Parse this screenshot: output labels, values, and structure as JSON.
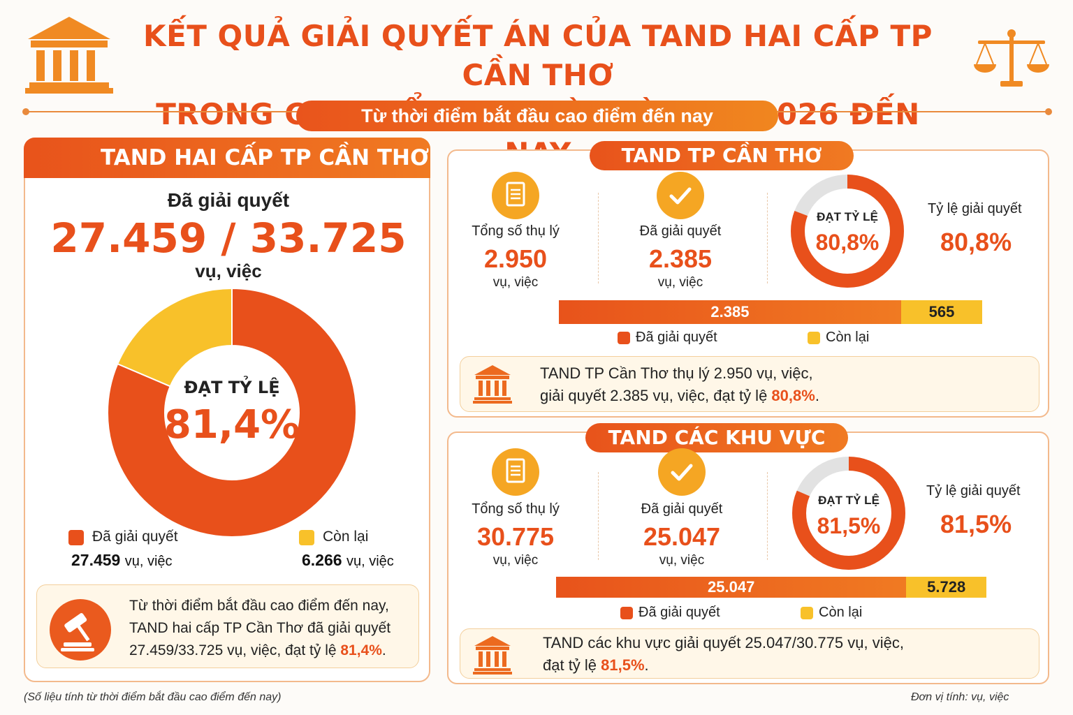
{
  "header": {
    "title_line1": "KẾT QUẢ GIẢI QUYẾT ÁN CỦA TAND HAI CẤP TP CẦN THƠ",
    "title_line2": "TRONG CAO ĐIỂM 90 NGÀY TỪ 15/6/2026 ĐẾN NAY",
    "subtitle": "Từ thời điểm bắt đầu cao điểm đến nay"
  },
  "left": {
    "header": "TAND HAI CẤP TP CẦN THƠ",
    "resolved_label": "Đã giải quyết",
    "resolved_total": "27.459 / 33.725",
    "unit": "vụ, việc",
    "center_label": "ĐẠT TỶ LỆ",
    "center_value": "81,4%",
    "legend_resolved": "Đã giải quyết",
    "legend_remaining": "Còn lại",
    "resolved_value": "27.459",
    "remaining_value": "6.266",
    "unit_small": "vụ, việc",
    "note_line1": "Từ thời điểm bắt đầu cao điểm đến nay,",
    "note_line2": "TAND hai cấp TP Cần Thơ đã giải quyết",
    "note_line3_pre": "27.459/33.725 vụ, việc, đạt tỷ lệ ",
    "note_line3_hl": "81,4%",
    "note_line3_post": "."
  },
  "city": {
    "pill": "TAND TP CẦN THƠ",
    "total_label": "Tổng số thụ lý",
    "total_value": "2.950",
    "resolved_label": "Đã giải quyết",
    "resolved_value": "2.385",
    "unit": "vụ, việc",
    "donut_label": "ĐẠT TỶ LỆ",
    "donut_value": "80,8%",
    "rate_label": "Tỷ lệ giải quyết",
    "rate_value": "80,8%",
    "bar_resolved": "2.385",
    "bar_remaining": "565",
    "legend_resolved": "Đã giải quyết",
    "legend_remaining": "Còn lại",
    "note_line1": "TAND TP Cần Thơ thụ lý 2.950 vụ, việc,",
    "note_line2_pre": "giải quyết 2.385 vụ, việc, đạt tỷ lệ ",
    "note_line2_hl": "80,8%",
    "note_line2_post": "."
  },
  "regional": {
    "pill": "TAND CÁC KHU VỰC",
    "total_label": "Tổng số thụ lý",
    "total_value": "30.775",
    "resolved_label": "Đã giải quyết",
    "resolved_value": "25.047",
    "unit": "vụ, việc",
    "donut_label": "ĐẠT TỶ LỆ",
    "donut_value": "81,5%",
    "rate_label": "Tỷ lệ giải quyết",
    "rate_value": "81,5%",
    "bar_resolved": "25.047",
    "bar_remaining": "5.728",
    "legend_resolved": "Đã giải quyết",
    "legend_remaining": "Còn lại",
    "note_line1": "TAND các khu vực giải quyết 25.047/30.775 vụ, việc,",
    "note_line2_pre": "đạt tỷ lệ ",
    "note_line2_hl": "81,5%",
    "note_line2_post": "."
  },
  "footer": {
    "left": "(Số liệu tính từ thời điểm bắt đầu cao điểm đến nay)",
    "right": "Đơn vị tính: vụ, việc"
  },
  "colors": {
    "resolved": "#e8501b",
    "remaining": "#f8c12a",
    "track": "#e2e2e2"
  },
  "chart_data": [
    {
      "type": "pie",
      "categories": [
        "Đã giải quyết",
        "Còn lại"
      ],
      "values": [
        27459,
        6266
      ],
      "title": "TAND HAI CẤP TP CẦN THƠ"
    },
    {
      "type": "bar",
      "categories": [
        "Đã giải quyết",
        "Còn lại"
      ],
      "values": [
        2385,
        565
      ],
      "title": "TAND TP CẦN THƠ",
      "rate_percent": 80.8
    },
    {
      "type": "bar",
      "categories": [
        "Đã giải quyết",
        "Còn lại"
      ],
      "values": [
        25047,
        5728
      ],
      "title": "TAND CÁC KHU VỰC",
      "rate_percent": 81.5
    }
  ]
}
